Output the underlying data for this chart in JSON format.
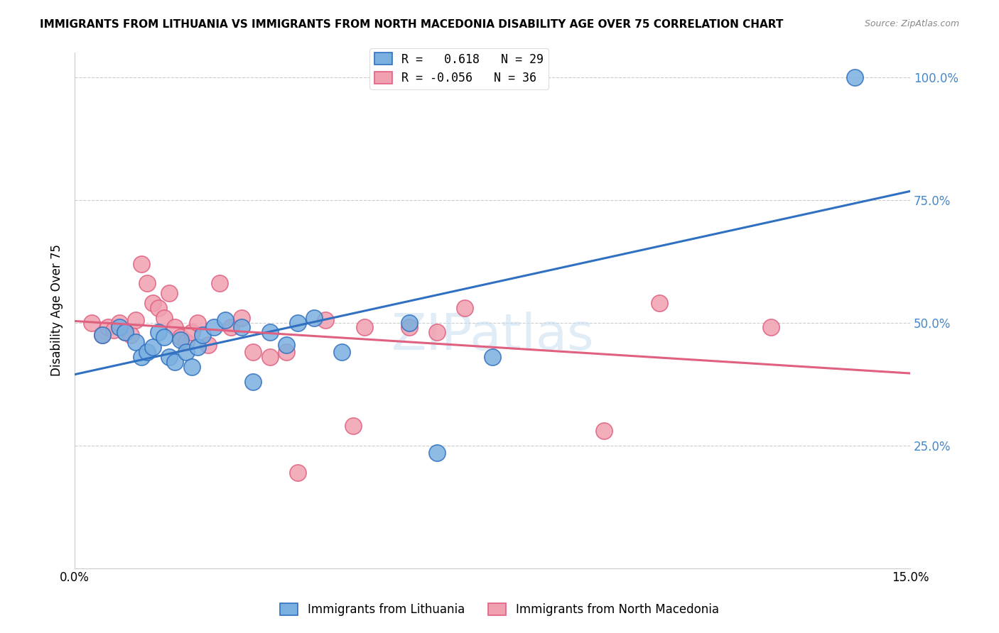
{
  "title": "IMMIGRANTS FROM LITHUANIA VS IMMIGRANTS FROM NORTH MACEDONIA DISABILITY AGE OVER 75 CORRELATION CHART",
  "source": "Source: ZipAtlas.com",
  "xlabel": "",
  "ylabel": "Disability Age Over 75",
  "xlim": [
    0.0,
    0.15
  ],
  "ylim": [
    0.0,
    1.05
  ],
  "yticks": [
    0.0,
    0.25,
    0.5,
    0.75,
    1.0
  ],
  "ytick_labels": [
    "",
    "25.0%",
    "50.0%",
    "75.0%",
    "100.0%"
  ],
  "xticks": [
    0.0,
    0.03,
    0.06,
    0.09,
    0.12,
    0.15
  ],
  "xtick_labels": [
    "0.0%",
    "",
    "",
    "",
    "",
    "15.0%"
  ],
  "legend1_label": "R =   0.618   N = 29",
  "legend2_label": "R = -0.056   N = 36",
  "legend_xlabel1": "Immigrants from Lithuania",
  "legend_xlabel2": "Immigrants from North Macedonia",
  "blue_color": "#7ab0e0",
  "pink_color": "#f0a0b0",
  "blue_line_color": "#3070c0",
  "pink_line_color": "#e06080",
  "watermark": "ZIPatlas",
  "blue_R": 0.618,
  "pink_R": -0.056,
  "blue_x": [
    0.005,
    0.008,
    0.009,
    0.011,
    0.012,
    0.013,
    0.014,
    0.015,
    0.016,
    0.017,
    0.018,
    0.019,
    0.02,
    0.021,
    0.022,
    0.023,
    0.025,
    0.027,
    0.03,
    0.032,
    0.035,
    0.038,
    0.04,
    0.043,
    0.048,
    0.06,
    0.065,
    0.075,
    0.14
  ],
  "blue_y": [
    0.475,
    0.49,
    0.48,
    0.46,
    0.43,
    0.44,
    0.45,
    0.48,
    0.47,
    0.43,
    0.42,
    0.465,
    0.44,
    0.41,
    0.45,
    0.475,
    0.49,
    0.505,
    0.49,
    0.38,
    0.48,
    0.455,
    0.5,
    0.51,
    0.44,
    0.5,
    0.235,
    0.43,
    1.0
  ],
  "pink_x": [
    0.003,
    0.005,
    0.006,
    0.007,
    0.008,
    0.009,
    0.01,
    0.011,
    0.012,
    0.013,
    0.014,
    0.015,
    0.016,
    0.017,
    0.018,
    0.019,
    0.02,
    0.021,
    0.022,
    0.024,
    0.026,
    0.028,
    0.03,
    0.032,
    0.035,
    0.038,
    0.04,
    0.045,
    0.05,
    0.052,
    0.06,
    0.065,
    0.07,
    0.095,
    0.105,
    0.125
  ],
  "pink_y": [
    0.5,
    0.475,
    0.49,
    0.485,
    0.5,
    0.48,
    0.475,
    0.505,
    0.62,
    0.58,
    0.54,
    0.53,
    0.51,
    0.56,
    0.49,
    0.47,
    0.46,
    0.48,
    0.5,
    0.455,
    0.58,
    0.49,
    0.51,
    0.44,
    0.43,
    0.44,
    0.195,
    0.505,
    0.29,
    0.49,
    0.49,
    0.48,
    0.53,
    0.28,
    0.54,
    0.49
  ]
}
